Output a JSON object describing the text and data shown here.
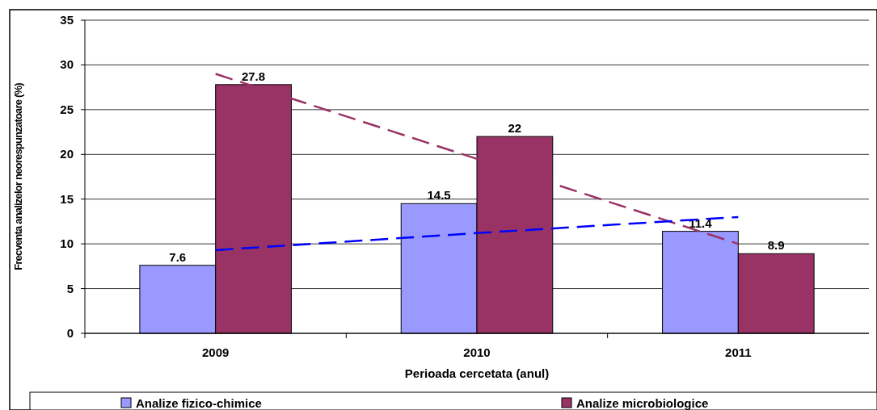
{
  "chart_data": {
    "type": "bar",
    "xlabel": "Perioada cercetata (anul)",
    "ylabel": "Frecventa analizelor neorespunzatoare (%)",
    "categories": [
      "2009",
      "2010",
      "2011"
    ],
    "series": [
      {
        "name": "Analize fizico-chimice",
        "color": "#9999ff",
        "values": [
          7.6,
          14.5,
          11.4
        ],
        "value_labels": [
          "7.6",
          "14.5",
          "11.4"
        ]
      },
      {
        "name": "Analize microbiologice",
        "color": "#993366",
        "values": [
          27.8,
          22,
          8.9
        ],
        "value_labels": [
          "27.8",
          "22",
          "8.9"
        ]
      },
      {
        "type": "line",
        "color": "#993366",
        "values": [
          29,
          19.5,
          10
        ],
        "line_style": "dashed"
      },
      {
        "type": "line",
        "color": "#0000ff",
        "values": [
          9.3,
          11.2,
          13
        ],
        "line_style": "dashed"
      }
    ],
    "ylim": [
      0,
      35
    ],
    "yticks": [
      0,
      5,
      10,
      15,
      20,
      25,
      30,
      35
    ],
    "grid": "y",
    "legend": "bottom"
  }
}
